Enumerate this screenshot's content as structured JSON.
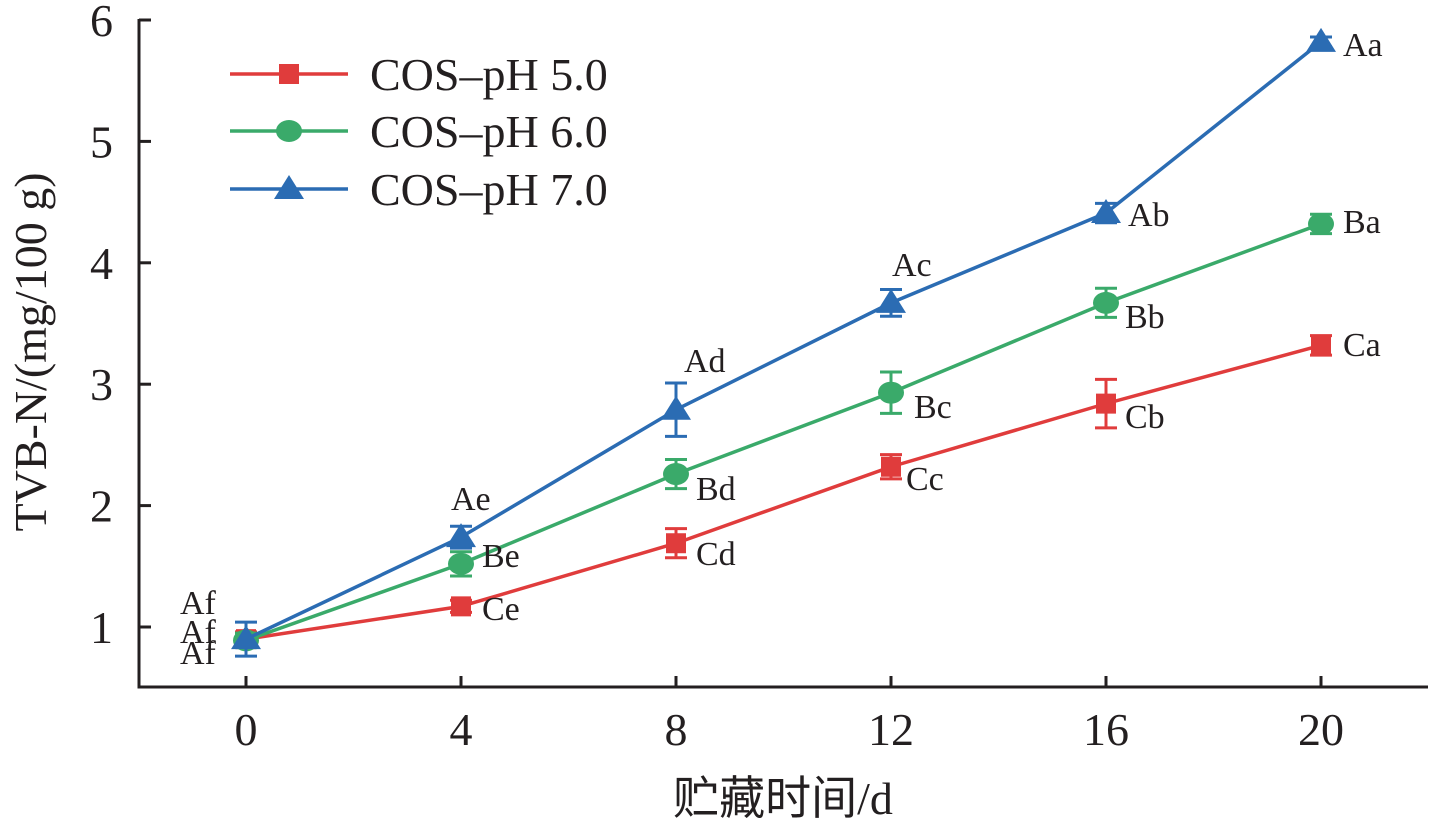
{
  "chart_data": {
    "type": "line",
    "xlabel": "贮藏时间/d",
    "ylabel": "TVB-N/(mg/100 g)",
    "x": [
      0,
      4,
      8,
      12,
      16,
      20
    ],
    "xticks": [
      "0",
      "4",
      "8",
      "12",
      "16",
      "20"
    ],
    "yticks": [
      "1",
      "2",
      "3",
      "4",
      "5",
      "6"
    ],
    "xlim": [
      -2,
      22
    ],
    "ylim": [
      0.5,
      6
    ],
    "grid": false,
    "legend_position": "top-left",
    "series": [
      {
        "name": "COS–pH 5.0",
        "color": "#e03c3c",
        "marker": "square",
        "values": [
          0.9,
          1.17,
          1.69,
          2.32,
          2.84,
          3.32
        ],
        "errors": [
          0.06,
          0.05,
          0.12,
          0.1,
          0.2,
          0.08
        ],
        "labels": [
          "Af",
          "Ce",
          "Cd",
          "Cc",
          "Cb",
          "Ca"
        ]
      },
      {
        "name": "COS–pH 6.0",
        "color": "#3aaa6a",
        "marker": "circle",
        "values": [
          0.89,
          1.52,
          2.26,
          2.93,
          3.67,
          4.32
        ],
        "errors": [
          0.06,
          0.1,
          0.12,
          0.17,
          0.12,
          0.08
        ],
        "labels": [
          "Af",
          "Be",
          "Bd",
          "Bc",
          "Bb",
          "Ba"
        ]
      },
      {
        "name": "COS–pH 7.0",
        "color": "#2b6cb3",
        "marker": "triangle",
        "values": [
          0.9,
          1.74,
          2.79,
          3.67,
          4.41,
          5.82
        ],
        "errors": [
          0.14,
          0.09,
          0.22,
          0.11,
          0.08,
          0.04
        ],
        "labels": [
          "Af",
          "Ae",
          "Ad",
          "Ac",
          "Ab",
          "Aa"
        ]
      }
    ]
  }
}
